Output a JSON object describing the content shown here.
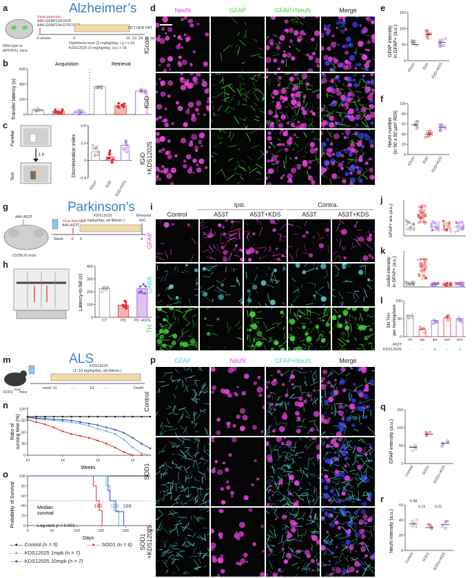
{
  "panels": {
    "a": {
      "label": "a",
      "title": "Alzheimer’s",
      "virus_lines": [
        "Virus injection",
        "AAV-GFAP104-GFP",
        "AAV-GFAP104-DTR-GFP"
      ],
      "mice": [
        "Wild type or",
        "APP/PS1 mice"
      ],
      "timeline": [
        "-5 weeks",
        "0",
        "16",
        "23",
        "24",
        "25",
        "day"
      ],
      "tests": [
        "OFT",
        "NPR",
        "PAT"
      ],
      "dosing": [
        "Diphtheria toxin (2 mg/kg/day, i.p.) x 16",
        "KDS12025 (3 mg/kg/day, i.p.) x 16"
      ]
    },
    "b": {
      "label": "b",
      "ylabel": "Transfer latency (s)",
      "sections": [
        "Acquisition",
        "Retrieval"
      ]
    },
    "c": {
      "label": "c",
      "ylabel": "Discrimination index",
      "box_labels": [
        "Familiar",
        "Test"
      ],
      "interval": "1 h"
    },
    "d": {
      "label": "d",
      "cols": [
        "NeuN",
        "GFAP",
        "GFAP+NeuN",
        "Merge"
      ],
      "rows": [
        "fGcon",
        "fGiD",
        "fGiD\n+KDS12025"
      ]
    },
    "e": {
      "label": "e",
      "ylabel": "GFAP intensity\nin GFAP+ (a.u.)"
    },
    "f": {
      "label": "f",
      "ylabel": "NeuN number\n(in 50 x 50 µm² ROI)"
    },
    "g": {
      "label": "g",
      "title": "Parkinson’s",
      "virus": "AAV-A53T",
      "injection": [
        "Virus injection",
        "AAV-A53T"
      ],
      "drug": [
        "KDS12025",
        "( 1 mg/kg/day, ad libitum )"
      ],
      "timeline": [
        "Week",
        "-2",
        "0",
        "4"
      ],
      "behavior": [
        "Behavior",
        "IHC"
      ],
      "mice": "C57BL/6 mice"
    },
    "h": {
      "label": "h",
      "ylabel": "Latency-to-fall (s)",
      "cats": [
        "CT",
        "PD",
        "PD\n+KDS"
      ]
    },
    "i": {
      "label": "i",
      "groups": [
        "Ipsi.",
        "Contra."
      ],
      "cols": [
        "Control",
        "A53T",
        "A53T+KDS",
        "A53T",
        "A53T+KDS"
      ],
      "rows": [
        "GFAP",
        "GABA",
        "TH"
      ]
    },
    "j": {
      "label": "j",
      "ylabel": "GFAP+ are (a.u.)"
    },
    "k": {
      "label": "k",
      "ylabel": "GABA intensity\nin GFAP+ (a.u.)"
    },
    "l": {
      "label": "l",
      "ylabel": "SN TH+\nper hemisphere",
      "cats": [
        "ctr",
        "ips",
        "ips",
        "con",
        "con"
      ],
      "row1_label": "A53T:",
      "row2_label": "KDS12025:",
      "row2": [
        "-",
        "-",
        "+",
        "-",
        "+"
      ]
    },
    "m": {
      "label": "m",
      "title": "ALS",
      "drug": [
        "KDS12025",
        "(1, 10 mg/kg/day, ad libitum)"
      ],
      "timeline": [
        "week 10",
        "13",
        "Death"
      ],
      "mice": "SOD1 mice",
      "superscript": "G93A"
    },
    "n": {
      "label": "n",
      "ylabel": "Ratio of\nrunning time (%)",
      "xlabel": "Weeks"
    },
    "o": {
      "label": "o",
      "ylabel": "Probability of Survival",
      "xlabel": "Days",
      "median_label": [
        "Median",
        "survival"
      ],
      "medians": [
        "140",
        "168",
        "168"
      ],
      "logrank": "Log-rank p < 0.001"
    },
    "p": {
      "label": "p",
      "cols": [
        "GFAP",
        "NeuN",
        "GFAP+NeuN",
        "Merge"
      ],
      "rows": [
        "Control",
        "SOD1",
        "SOD1\n+KDS12025"
      ]
    },
    "q": {
      "label": "q",
      "ylabel": "GFAP intensity (a.u.)",
      "cats": [
        "Control",
        "SOD1",
        "SOD1+KDS"
      ]
    },
    "r": {
      "label": "r",
      "ylabel": "NeuN intensity (a.u.)",
      "cats": [
        "Control",
        "SOD1",
        "SOD1+KDS"
      ],
      "pvals": [
        "0.98",
        "0.15",
        "0.21"
      ]
    }
  },
  "legend": [
    {
      "name": "Control",
      "n": "(n = 5)",
      "color": "#111111"
    },
    {
      "name": "SOD1",
      "n": "(n = 6)",
      "color": "#e0282a"
    },
    {
      "name": "KDS12025 1mpk",
      "n": "(n = 7)",
      "color": "#6fa8e6"
    },
    {
      "name": "KDS12025 10mpk",
      "n": "(n = 7)",
      "color": "#2b4fb8"
    }
  ],
  "colors": {
    "red": "#e0282a",
    "purple": "#9b54d6",
    "grey": "#888888",
    "blue": "#2b4fb8",
    "lightblue": "#6fa8e6",
    "magenta": "#e33fd8",
    "green": "#3fd33a",
    "cyan": "#52c8c8",
    "title": "#3a7fc4"
  },
  "chart_data": [
    {
      "type": "scatter",
      "panel": "e",
      "categories": [
        "fGcon",
        "fGiD",
        "fGiD+KDS"
      ],
      "values": [
        50,
        82,
        57
      ],
      "ylim": [
        0,
        150
      ],
      "yticks": [
        0,
        50,
        100,
        150
      ]
    },
    {
      "type": "scatter",
      "panel": "f",
      "categories": [
        "fGcon",
        "fGiD",
        "fGiD+KDS"
      ],
      "values": [
        58,
        40,
        53
      ],
      "ylim": [
        0,
        100
      ],
      "yticks": [
        0,
        20,
        40,
        60,
        80,
        100
      ]
    },
    {
      "type": "bar",
      "panel": "b",
      "categories": [
        "fGcon",
        "fGiD",
        "fGiD+KDS",
        "fGcon",
        "fGiD",
        "fGiD+KDS"
      ],
      "values": [
        60,
        45,
        30,
        370,
        120,
        310
      ],
      "ylim": [
        0,
        600
      ],
      "yticks": [
        0,
        200,
        400,
        600
      ]
    },
    {
      "type": "bar",
      "panel": "c",
      "categories": [
        "fGcon",
        "fGiD",
        "fGiD+KDS"
      ],
      "values": [
        0.2,
        0.08,
        0.35
      ],
      "ylim": [
        -0.4,
        0.8
      ],
      "yticks": [
        -0.4,
        0.0,
        0.4,
        0.8
      ]
    },
    {
      "type": "bar",
      "panel": "h",
      "categories": [
        "CT",
        "PD",
        "PD\n+KDS"
      ],
      "values": [
        225,
        95,
        225
      ],
      "ylim": [
        0,
        400
      ],
      "yticks": [
        0,
        100,
        200,
        300,
        400
      ]
    },
    {
      "type": "bar",
      "panel": "l",
      "categories": [
        "ctr",
        "ips",
        "ips",
        "con",
        "con"
      ],
      "values": [
        58,
        20,
        45,
        52,
        50
      ],
      "ylim": [
        0,
        100
      ],
      "yticks": [
        0,
        50,
        100
      ]
    },
    {
      "type": "line",
      "panel": "n",
      "x": [
        10,
        11,
        12,
        13,
        14,
        15,
        16,
        17,
        18,
        19,
        20,
        21,
        22,
        23,
        24
      ],
      "series": [
        {
          "name": "Control",
          "values": [
            100,
            100,
            100,
            100,
            100,
            100,
            100,
            100,
            100,
            100,
            100,
            100,
            100,
            100,
            100
          ]
        },
        {
          "name": "SOD1",
          "values": [
            92,
            86,
            80,
            72,
            62,
            55,
            50,
            45,
            38,
            30,
            20,
            8,
            0,
            0,
            0
          ]
        },
        {
          "name": "KDS12025 1mpk",
          "values": [
            98,
            94,
            92,
            90,
            88,
            85,
            82,
            76,
            68,
            62,
            55,
            40,
            20,
            5,
            0
          ]
        },
        {
          "name": "KDS12025 10mpk",
          "values": [
            98,
            96,
            95,
            93,
            92,
            90,
            86,
            82,
            78,
            72,
            66,
            58,
            45,
            30,
            18
          ]
        }
      ],
      "ylim": [
        0,
        125
      ],
      "yticks": [
        0,
        30,
        60,
        90,
        120
      ],
      "xticks": [
        10,
        14,
        18,
        22
      ]
    },
    {
      "type": "line",
      "panel": "o",
      "xticks": [
        0,
        50,
        100,
        150,
        200,
        250
      ],
      "yticks": [
        0,
        20,
        40,
        60,
        80,
        100
      ],
      "xlim": [
        0,
        250
      ],
      "ylim": [
        0,
        100
      ]
    }
  ]
}
